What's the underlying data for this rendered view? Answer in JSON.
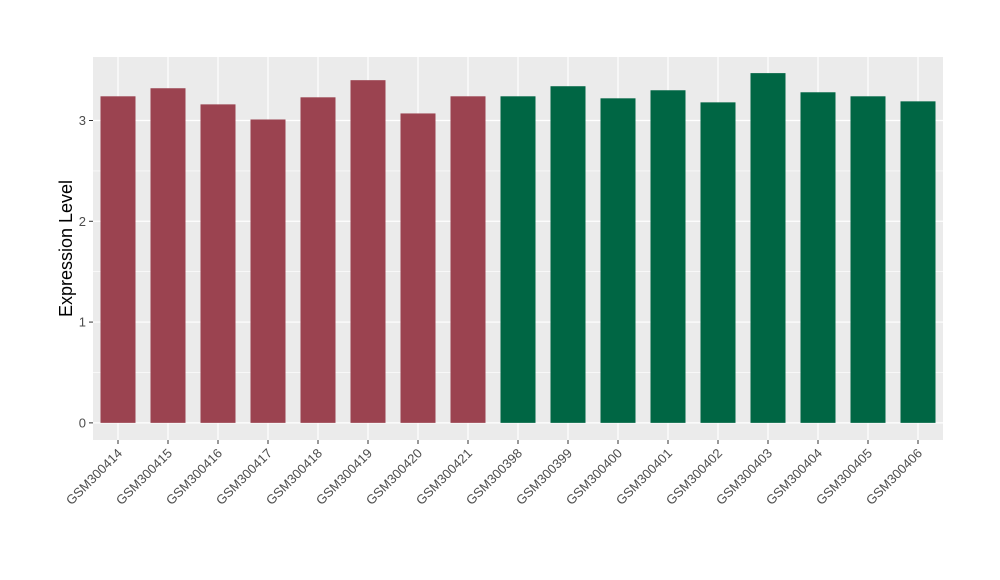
{
  "chart_data": {
    "type": "bar",
    "title": "",
    "xlabel": "",
    "ylabel": "Expression Level",
    "ylim": [
      -0.17,
      3.63
    ],
    "yticks": [
      0,
      1,
      2,
      3
    ],
    "grid": true,
    "categories": [
      "GSM300414",
      "GSM300415",
      "GSM300416",
      "GSM300417",
      "GSM300418",
      "GSM300419",
      "GSM300420",
      "GSM300421",
      "GSM300398",
      "GSM300399",
      "GSM300400",
      "GSM300401",
      "GSM300402",
      "GSM300403",
      "GSM300404",
      "GSM300405",
      "GSM300406"
    ],
    "values": [
      3.24,
      3.32,
      3.16,
      3.01,
      3.23,
      3.4,
      3.07,
      3.24,
      3.24,
      3.34,
      3.22,
      3.3,
      3.18,
      3.47,
      3.28,
      3.24,
      3.19
    ],
    "group_colors": [
      "#9b4350",
      "#9b4350",
      "#9b4350",
      "#9b4350",
      "#9b4350",
      "#9b4350",
      "#9b4350",
      "#9b4350",
      "#006644",
      "#006644",
      "#006644",
      "#006644",
      "#006644",
      "#006644",
      "#006644",
      "#006644",
      "#006644"
    ],
    "panel_background": "#ebebeb",
    "gridline_color": "#ffffff"
  }
}
